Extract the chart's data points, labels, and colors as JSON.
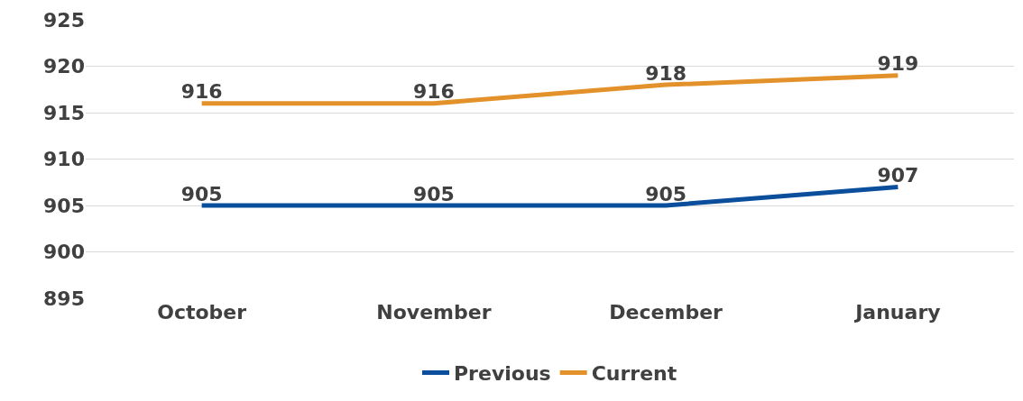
{
  "chart_data": {
    "type": "line",
    "categories": [
      "October",
      "November",
      "December",
      "January"
    ],
    "series": [
      {
        "name": "Previous",
        "color": "#0b4f9c",
        "values": [
          905,
          905,
          905,
          907
        ]
      },
      {
        "name": "Current",
        "color": "#e3922b",
        "values": [
          916,
          916,
          918,
          919
        ]
      }
    ],
    "ylim": [
      895,
      925
    ],
    "yticks": [
      895,
      900,
      905,
      910,
      915,
      920,
      925
    ],
    "grid": "y",
    "legend": "bottom",
    "data_labels": true,
    "marker": "none",
    "line_style": "solid"
  }
}
